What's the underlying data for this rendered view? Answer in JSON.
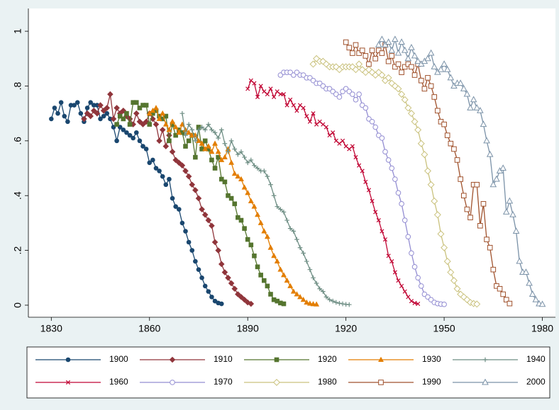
{
  "chart_data": {
    "type": "line",
    "xlim": [
      1823,
      1984
    ],
    "xticks": [
      1830,
      1860,
      1890,
      1920,
      1950,
      1980
    ],
    "ylim": [
      -0.044,
      1.083
    ],
    "yticks": [
      {
        "value": 0,
        "label": "0"
      },
      {
        "value": 0.2,
        "label": ".2"
      },
      {
        "value": 0.4,
        "label": ".4"
      },
      {
        "value": 0.6,
        "label": ".6"
      },
      {
        "value": 0.8,
        "label": ".8"
      },
      {
        "value": 1,
        "label": "1"
      }
    ],
    "series": [
      {
        "name": "1900",
        "color": "#1a476f",
        "marker": "circle",
        "x": [
          1830,
          1831,
          1832,
          1833,
          1834,
          1835,
          1836,
          1837,
          1838,
          1839,
          1840,
          1841,
          1842,
          1843,
          1844,
          1845,
          1846,
          1847,
          1848,
          1849,
          1850,
          1851,
          1852,
          1853,
          1854,
          1855,
          1856,
          1857,
          1858,
          1859,
          1860,
          1861,
          1862,
          1863,
          1864,
          1865,
          1866,
          1867,
          1868,
          1869,
          1870,
          1871,
          1872,
          1873,
          1874,
          1875,
          1876,
          1877,
          1878,
          1879,
          1880,
          1881,
          1882
        ],
        "values": [
          0.68,
          0.72,
          0.7,
          0.74,
          0.69,
          0.67,
          0.73,
          0.73,
          0.74,
          0.7,
          0.67,
          0.72,
          0.74,
          0.73,
          0.73,
          0.68,
          0.69,
          0.7,
          0.68,
          0.65,
          0.6,
          0.65,
          0.64,
          0.63,
          0.62,
          0.61,
          0.63,
          0.6,
          0.58,
          0.57,
          0.52,
          0.53,
          0.5,
          0.49,
          0.47,
          0.44,
          0.46,
          0.39,
          0.36,
          0.35,
          0.3,
          0.27,
          0.23,
          0.2,
          0.16,
          0.13,
          0.1,
          0.07,
          0.05,
          0.03,
          0.015,
          0.008,
          0.005
        ]
      },
      {
        "name": "1910",
        "color": "#90353b",
        "marker": "diamond",
        "x": [
          1840,
          1841,
          1842,
          1843,
          1844,
          1845,
          1846,
          1847,
          1848,
          1849,
          1850,
          1851,
          1852,
          1853,
          1854,
          1855,
          1856,
          1857,
          1858,
          1859,
          1860,
          1861,
          1862,
          1863,
          1864,
          1865,
          1866,
          1867,
          1868,
          1869,
          1870,
          1871,
          1872,
          1873,
          1874,
          1875,
          1876,
          1877,
          1878,
          1879,
          1880,
          1881,
          1882,
          1883,
          1884,
          1885,
          1886,
          1887,
          1888,
          1889,
          1890,
          1891
        ],
        "values": [
          0.68,
          0.7,
          0.69,
          0.71,
          0.7,
          0.73,
          0.71,
          0.72,
          0.77,
          0.68,
          0.72,
          0.7,
          0.71,
          0.69,
          0.68,
          0.66,
          0.7,
          0.67,
          0.66,
          0.67,
          0.7,
          0.68,
          0.66,
          0.6,
          0.64,
          0.58,
          0.62,
          0.56,
          0.53,
          0.52,
          0.51,
          0.49,
          0.47,
          0.44,
          0.42,
          0.39,
          0.35,
          0.33,
          0.31,
          0.29,
          0.23,
          0.2,
          0.15,
          0.12,
          0.1,
          0.08,
          0.06,
          0.04,
          0.03,
          0.02,
          0.01,
          0.005
        ]
      },
      {
        "name": "1920",
        "color": "#55752f",
        "marker": "square",
        "x": [
          1850,
          1851,
          1852,
          1853,
          1854,
          1855,
          1856,
          1857,
          1858,
          1859,
          1860,
          1861,
          1862,
          1863,
          1864,
          1865,
          1866,
          1867,
          1868,
          1869,
          1870,
          1871,
          1872,
          1873,
          1874,
          1875,
          1876,
          1877,
          1878,
          1879,
          1880,
          1881,
          1882,
          1883,
          1884,
          1885,
          1886,
          1887,
          1888,
          1889,
          1890,
          1891,
          1892,
          1893,
          1894,
          1895,
          1896,
          1897,
          1898,
          1899,
          1900,
          1901
        ],
        "values": [
          0.66,
          0.69,
          0.68,
          0.7,
          0.66,
          0.74,
          0.74,
          0.72,
          0.73,
          0.73,
          0.66,
          0.7,
          0.71,
          0.69,
          0.68,
          0.69,
          0.6,
          0.66,
          0.62,
          0.64,
          0.63,
          0.58,
          0.6,
          0.62,
          0.54,
          0.65,
          0.57,
          0.6,
          0.57,
          0.53,
          0.5,
          0.54,
          0.46,
          0.45,
          0.4,
          0.39,
          0.37,
          0.32,
          0.31,
          0.28,
          0.24,
          0.22,
          0.18,
          0.14,
          0.11,
          0.09,
          0.07,
          0.04,
          0.02,
          0.015,
          0.008,
          0.005
        ]
      },
      {
        "name": "1930",
        "color": "#e37e00",
        "marker": "triangle",
        "x": [
          1860,
          1861,
          1862,
          1863,
          1864,
          1865,
          1866,
          1867,
          1868,
          1869,
          1870,
          1871,
          1872,
          1873,
          1874,
          1875,
          1876,
          1877,
          1878,
          1879,
          1880,
          1881,
          1882,
          1883,
          1884,
          1885,
          1886,
          1887,
          1888,
          1889,
          1890,
          1891,
          1892,
          1893,
          1894,
          1895,
          1896,
          1897,
          1898,
          1899,
          1900,
          1901,
          1902,
          1903,
          1904,
          1905,
          1906,
          1907,
          1908,
          1909,
          1910,
          1911
        ],
        "values": [
          0.7,
          0.71,
          0.72,
          0.68,
          0.7,
          0.66,
          0.64,
          0.67,
          0.65,
          0.63,
          0.66,
          0.64,
          0.63,
          0.62,
          0.62,
          0.6,
          0.59,
          0.57,
          0.58,
          0.56,
          0.59,
          0.56,
          0.53,
          0.54,
          0.57,
          0.52,
          0.48,
          0.47,
          0.46,
          0.43,
          0.41,
          0.38,
          0.36,
          0.33,
          0.3,
          0.27,
          0.25,
          0.21,
          0.18,
          0.16,
          0.13,
          0.11,
          0.09,
          0.07,
          0.05,
          0.04,
          0.03,
          0.02,
          0.01,
          0.006,
          0.004,
          0.003
        ]
      },
      {
        "name": "1940",
        "color": "#6e8e84",
        "marker": "plus",
        "x": [
          1870,
          1871,
          1872,
          1873,
          1874,
          1875,
          1876,
          1877,
          1878,
          1879,
          1880,
          1881,
          1882,
          1883,
          1884,
          1885,
          1886,
          1887,
          1888,
          1889,
          1890,
          1891,
          1892,
          1893,
          1894,
          1895,
          1896,
          1897,
          1898,
          1899,
          1900,
          1901,
          1902,
          1903,
          1904,
          1905,
          1906,
          1907,
          1908,
          1909,
          1910,
          1911,
          1912,
          1913,
          1914,
          1915,
          1916,
          1917,
          1918,
          1919,
          1920,
          1921
        ],
        "values": [
          0.7,
          0.62,
          0.66,
          0.64,
          0.6,
          0.64,
          0.65,
          0.64,
          0.66,
          0.64,
          0.63,
          0.61,
          0.64,
          0.59,
          0.56,
          0.6,
          0.57,
          0.55,
          0.56,
          0.54,
          0.52,
          0.53,
          0.51,
          0.5,
          0.49,
          0.49,
          0.47,
          0.44,
          0.4,
          0.36,
          0.35,
          0.34,
          0.31,
          0.28,
          0.27,
          0.24,
          0.21,
          0.19,
          0.16,
          0.13,
          0.1,
          0.08,
          0.06,
          0.05,
          0.03,
          0.02,
          0.015,
          0.01,
          0.007,
          0.005,
          0.003,
          0.002
        ]
      },
      {
        "name": "1960",
        "color": "#c10534",
        "marker": "x",
        "x": [
          1890,
          1891,
          1892,
          1893,
          1894,
          1895,
          1896,
          1897,
          1898,
          1899,
          1900,
          1901,
          1902,
          1903,
          1904,
          1905,
          1906,
          1907,
          1908,
          1909,
          1910,
          1911,
          1912,
          1913,
          1914,
          1915,
          1916,
          1917,
          1918,
          1919,
          1920,
          1921,
          1922,
          1923,
          1924,
          1925,
          1926,
          1927,
          1928,
          1929,
          1930,
          1931,
          1932,
          1933,
          1934,
          1935,
          1936,
          1937,
          1938,
          1939,
          1940,
          1941,
          1942
        ],
        "values": [
          0.79,
          0.82,
          0.81,
          0.76,
          0.8,
          0.78,
          0.77,
          0.79,
          0.76,
          0.78,
          0.77,
          0.77,
          0.73,
          0.75,
          0.73,
          0.71,
          0.73,
          0.72,
          0.69,
          0.67,
          0.7,
          0.66,
          0.67,
          0.66,
          0.65,
          0.62,
          0.63,
          0.6,
          0.59,
          0.6,
          0.58,
          0.57,
          0.58,
          0.54,
          0.51,
          0.49,
          0.45,
          0.42,
          0.38,
          0.34,
          0.31,
          0.27,
          0.24,
          0.18,
          0.16,
          0.12,
          0.09,
          0.07,
          0.05,
          0.03,
          0.015,
          0.008,
          0.005
        ]
      },
      {
        "name": "1970",
        "color": "#938dd2",
        "marker": "circle-hollow",
        "x": [
          1900,
          1901,
          1902,
          1903,
          1904,
          1905,
          1906,
          1907,
          1908,
          1909,
          1910,
          1911,
          1912,
          1913,
          1914,
          1915,
          1916,
          1917,
          1918,
          1919,
          1920,
          1921,
          1922,
          1923,
          1924,
          1925,
          1926,
          1927,
          1928,
          1929,
          1930,
          1931,
          1932,
          1933,
          1934,
          1935,
          1936,
          1937,
          1938,
          1939,
          1940,
          1941,
          1942,
          1943,
          1944,
          1945,
          1946,
          1947,
          1948,
          1949,
          1950
        ],
        "values": [
          0.84,
          0.85,
          0.85,
          0.85,
          0.84,
          0.85,
          0.84,
          0.84,
          0.83,
          0.83,
          0.82,
          0.81,
          0.81,
          0.8,
          0.79,
          0.79,
          0.78,
          0.77,
          0.76,
          0.78,
          0.79,
          0.78,
          0.77,
          0.75,
          0.77,
          0.73,
          0.72,
          0.68,
          0.67,
          0.65,
          0.62,
          0.61,
          0.56,
          0.53,
          0.5,
          0.46,
          0.41,
          0.37,
          0.31,
          0.25,
          0.19,
          0.14,
          0.1,
          0.07,
          0.04,
          0.03,
          0.02,
          0.01,
          0.006,
          0.004,
          0.003
        ]
      },
      {
        "name": "1980",
        "color": "#cac27e",
        "marker": "diamond-hollow",
        "x": [
          1910,
          1911,
          1912,
          1913,
          1914,
          1915,
          1916,
          1917,
          1918,
          1919,
          1920,
          1921,
          1922,
          1923,
          1924,
          1925,
          1926,
          1927,
          1928,
          1929,
          1930,
          1931,
          1932,
          1933,
          1934,
          1935,
          1936,
          1937,
          1938,
          1939,
          1940,
          1941,
          1942,
          1943,
          1944,
          1945,
          1946,
          1947,
          1948,
          1949,
          1950,
          1951,
          1952,
          1953,
          1954,
          1955,
          1956,
          1957,
          1958,
          1959,
          1960
        ],
        "values": [
          0.88,
          0.9,
          0.89,
          0.89,
          0.88,
          0.87,
          0.87,
          0.87,
          0.86,
          0.87,
          0.87,
          0.87,
          0.87,
          0.86,
          0.88,
          0.86,
          0.85,
          0.86,
          0.85,
          0.84,
          0.85,
          0.84,
          0.82,
          0.83,
          0.81,
          0.8,
          0.79,
          0.77,
          0.75,
          0.72,
          0.7,
          0.67,
          0.64,
          0.59,
          0.55,
          0.49,
          0.44,
          0.38,
          0.33,
          0.26,
          0.21,
          0.16,
          0.12,
          0.09,
          0.06,
          0.04,
          0.03,
          0.02,
          0.01,
          0.006,
          0.004
        ]
      },
      {
        "name": "1990",
        "color": "#a0522d",
        "marker": "square-hollow",
        "x": [
          1920,
          1921,
          1922,
          1923,
          1924,
          1925,
          1926,
          1927,
          1928,
          1929,
          1930,
          1931,
          1932,
          1933,
          1934,
          1935,
          1936,
          1937,
          1938,
          1939,
          1940,
          1941,
          1942,
          1943,
          1944,
          1945,
          1946,
          1947,
          1948,
          1949,
          1950,
          1951,
          1952,
          1953,
          1954,
          1955,
          1956,
          1957,
          1958,
          1959,
          1960,
          1961,
          1962,
          1963,
          1964,
          1965,
          1966,
          1967,
          1968,
          1969,
          1970
        ],
        "values": [
          0.96,
          0.94,
          0.92,
          0.95,
          0.92,
          0.93,
          0.91,
          0.88,
          0.93,
          0.9,
          0.93,
          0.92,
          0.95,
          0.89,
          0.91,
          0.87,
          0.88,
          0.85,
          0.87,
          0.88,
          0.87,
          0.84,
          0.88,
          0.82,
          0.79,
          0.83,
          0.8,
          0.76,
          0.71,
          0.67,
          0.66,
          0.62,
          0.59,
          0.57,
          0.53,
          0.46,
          0.4,
          0.35,
          0.32,
          0.44,
          0.44,
          0.29,
          0.37,
          0.24,
          0.21,
          0.13,
          0.07,
          0.06,
          0.04,
          0.02,
          0.006
        ]
      },
      {
        "name": "2000",
        "color": "#7b92a8",
        "marker": "triangle-hollow",
        "x": [
          1930,
          1931,
          1932,
          1933,
          1934,
          1935,
          1936,
          1937,
          1938,
          1939,
          1940,
          1941,
          1942,
          1943,
          1944,
          1945,
          1946,
          1947,
          1948,
          1949,
          1950,
          1951,
          1952,
          1953,
          1954,
          1955,
          1956,
          1957,
          1958,
          1959,
          1960,
          1961,
          1962,
          1963,
          1964,
          1965,
          1966,
          1967,
          1968,
          1969,
          1970,
          1971,
          1972,
          1973,
          1974,
          1975,
          1976,
          1977,
          1978,
          1979,
          1980
        ],
        "values": [
          0.95,
          0.97,
          0.95,
          0.96,
          0.93,
          0.97,
          0.92,
          0.96,
          0.93,
          0.9,
          0.94,
          0.91,
          0.89,
          0.88,
          0.89,
          0.9,
          0.92,
          0.87,
          0.85,
          0.86,
          0.88,
          0.86,
          0.83,
          0.8,
          0.81,
          0.81,
          0.79,
          0.77,
          0.72,
          0.75,
          0.72,
          0.71,
          0.66,
          0.6,
          0.55,
          0.44,
          0.46,
          0.49,
          0.5,
          0.34,
          0.38,
          0.33,
          0.27,
          0.16,
          0.12,
          0.12,
          0.08,
          0.04,
          0.02,
          0.005,
          0.003
        ]
      }
    ]
  }
}
